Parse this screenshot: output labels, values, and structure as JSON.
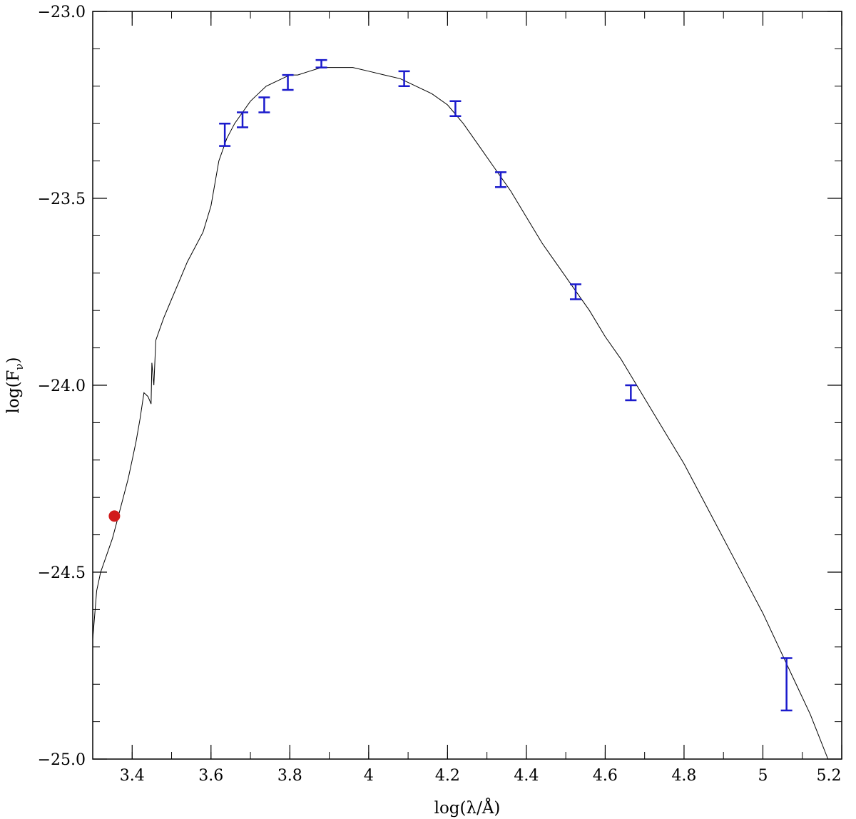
{
  "chart_data": {
    "type": "scatter",
    "xlabel": "log(λ/Å)",
    "ylabel": "log(F_ν)",
    "xlim": [
      3.3,
      5.2
    ],
    "ylim": [
      -25.0,
      -23.0
    ],
    "x_ticks": [
      3.4,
      3.6,
      3.8,
      4.0,
      4.2,
      4.4,
      4.6,
      4.8,
      5.0,
      5.2
    ],
    "x_tick_labels": [
      "3.4",
      "3.6",
      "3.8",
      "4",
      "4.2",
      "4.4",
      "4.6",
      "4.8",
      "5",
      "5.2"
    ],
    "y_ticks": [
      -25.0,
      -24.5,
      -24.0,
      -23.5,
      -23.0
    ],
    "y_tick_labels": [
      "−25.0",
      "−24.5",
      "−24.0",
      "−23.5",
      "−23.0"
    ],
    "grid": false,
    "model_spectrum": {
      "color": "#000000",
      "x": [
        3.3,
        3.31,
        3.32,
        3.33,
        3.34,
        3.35,
        3.36,
        3.37,
        3.38,
        3.39,
        3.4,
        3.41,
        3.42,
        3.43,
        3.44,
        3.448,
        3.45,
        3.455,
        3.46,
        3.47,
        3.48,
        3.5,
        3.52,
        3.54,
        3.56,
        3.58,
        3.6,
        3.62,
        3.64,
        3.66,
        3.68,
        3.7,
        3.72,
        3.74,
        3.76,
        3.78,
        3.8,
        3.82,
        3.85,
        3.88,
        3.92,
        3.96,
        4.0,
        4.04,
        4.08,
        4.12,
        4.16,
        4.2,
        4.24,
        4.28,
        4.32,
        4.36,
        4.4,
        4.44,
        4.48,
        4.52,
        4.56,
        4.6,
        4.64,
        4.68,
        4.72,
        4.76,
        4.8,
        4.84,
        4.88,
        4.92,
        4.96,
        5.0,
        5.04,
        5.08,
        5.12,
        5.165
      ],
      "y": [
        -24.68,
        -24.55,
        -24.5,
        -24.47,
        -24.44,
        -24.41,
        -24.37,
        -24.33,
        -24.29,
        -24.25,
        -24.2,
        -24.15,
        -24.09,
        -24.02,
        -24.03,
        -24.05,
        -23.94,
        -24.0,
        -23.88,
        -23.85,
        -23.82,
        -23.77,
        -23.72,
        -23.67,
        -23.63,
        -23.59,
        -23.52,
        -23.4,
        -23.34,
        -23.3,
        -23.27,
        -23.24,
        -23.22,
        -23.2,
        -23.19,
        -23.18,
        -23.17,
        -23.17,
        -23.16,
        -23.15,
        -23.15,
        -23.15,
        -23.16,
        -23.17,
        -23.18,
        -23.2,
        -23.22,
        -23.25,
        -23.3,
        -23.36,
        -23.42,
        -23.48,
        -23.55,
        -23.62,
        -23.68,
        -23.74,
        -23.8,
        -23.87,
        -23.93,
        -24.0,
        -24.07,
        -24.14,
        -24.21,
        -24.29,
        -24.37,
        -24.45,
        -24.53,
        -24.61,
        -24.7,
        -24.79,
        -24.88,
        -25.0
      ]
    },
    "photometry": {
      "color": "#1a1acc",
      "x": [
        3.635,
        3.68,
        3.735,
        3.795,
        3.88,
        4.09,
        4.22,
        4.335,
        4.525,
        4.665,
        5.06
      ],
      "y": [
        -23.33,
        -23.29,
        -23.25,
        -23.19,
        -23.14,
        -23.18,
        -23.26,
        -23.45,
        -23.75,
        -24.02,
        -24.8
      ],
      "yerr": [
        0.03,
        0.02,
        0.02,
        0.02,
        0.01,
        0.02,
        0.02,
        0.02,
        0.02,
        0.02,
        0.07
      ]
    },
    "highlight_point": {
      "x": 3.355,
      "y": -24.35,
      "color": "#d11a1a"
    }
  }
}
